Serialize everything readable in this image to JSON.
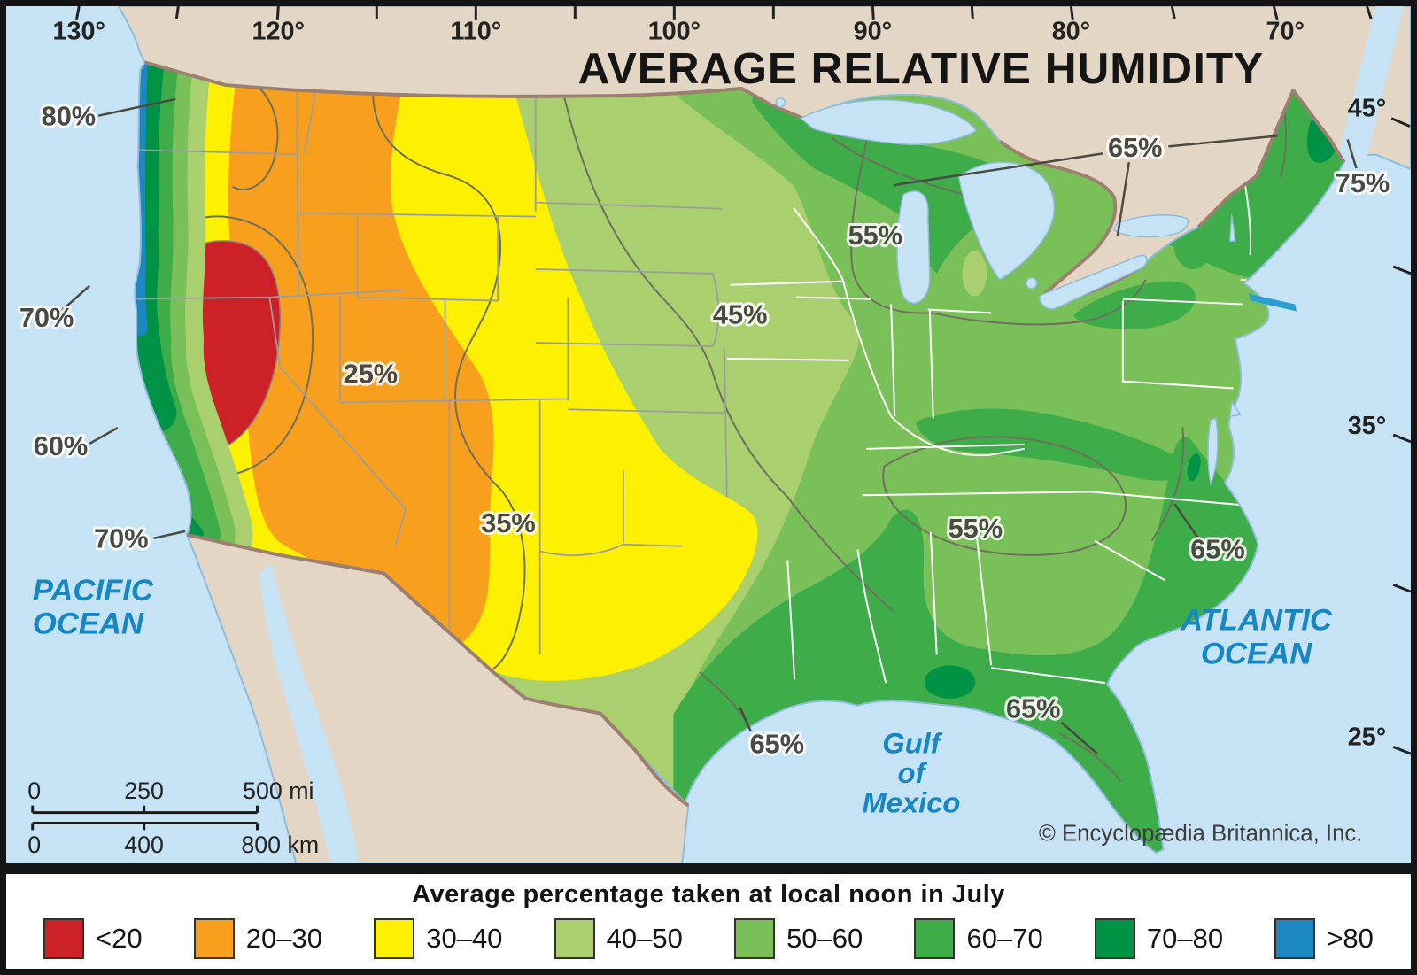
{
  "title": "AVERAGE RELATIVE HUMIDITY",
  "axes": {
    "longitude": [
      "130°",
      "120°",
      "110°",
      "100°",
      "90°",
      "80°",
      "70°"
    ],
    "latitude": [
      "45°",
      "35°",
      "25°"
    ]
  },
  "contours": {
    "p80": "80%",
    "p70_nw": "70%",
    "p60": "60%",
    "p70_sw": "70%",
    "p25": "25%",
    "p35": "35%",
    "p45": "45%",
    "p55_n": "55%",
    "p55_s": "55%",
    "p65_ne": "65%",
    "p75": "75%",
    "p65_tx": "65%",
    "p65_fl": "65%",
    "p65_atl": "65%"
  },
  "oceans": {
    "pacific_1": "PACIFIC",
    "pacific_2": "OCEAN",
    "atlantic_1": "ATLANTIC",
    "atlantic_2": "OCEAN",
    "gulf_1": "Gulf",
    "gulf_2": "of",
    "gulf_3": "Mexico"
  },
  "scale_bar": {
    "mi_0": "0",
    "mi_mid": "250",
    "mi_end": "500 mi",
    "km_0": "0",
    "km_mid": "400",
    "km_end": "800 km"
  },
  "copyright": "© Encyclopædia Britannica, Inc.",
  "legend": {
    "title": "Average percentage taken at local noon in July",
    "items": [
      {
        "label": "<20",
        "key": "lt20"
      },
      {
        "label": "20–30",
        "key": "r20_30"
      },
      {
        "label": "30–40",
        "key": "r30_40"
      },
      {
        "label": "40–50",
        "key": "r40_50"
      },
      {
        "label": "50–60",
        "key": "r50_60"
      },
      {
        "label": "60–70",
        "key": "r60_70"
      },
      {
        "label": "70–80",
        "key": "r70_80"
      },
      {
        "label": ">80",
        "key": "gt80"
      }
    ]
  },
  "palette": {
    "lt20": "#cb2127",
    "r20_30": "#f8a01e",
    "r30_40": "#fdf000",
    "r40_50": "#a9cf6e",
    "r50_60": "#7ac058",
    "r60_70": "#3dac49",
    "r70_80": "#009245",
    "gt80": "#1b88c4",
    "water": "#c5e3f4",
    "land": "#e3d6c4",
    "border_brown": "#9c7f71",
    "coast": "#8fbbdc",
    "long_island": "#2a9fd0"
  }
}
